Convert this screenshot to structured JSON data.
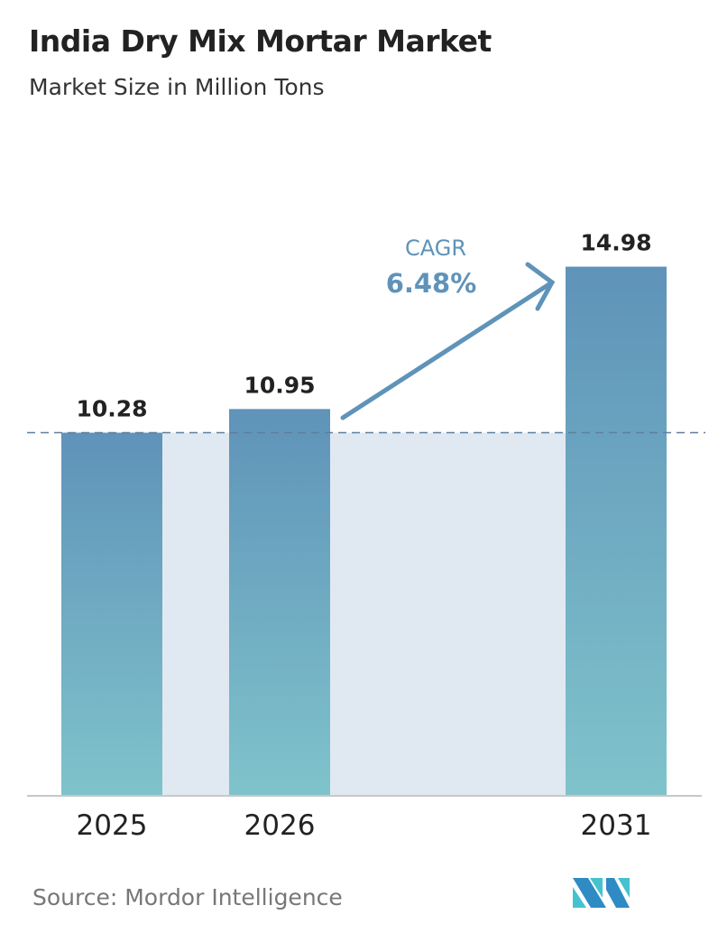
{
  "chart_data": {
    "type": "bar",
    "title": "India Dry Mix Mortar Market",
    "subtitle": "Market Size in Million Tons",
    "categories": [
      "2025",
      "2026",
      "2031"
    ],
    "values": [
      10.28,
      10.95,
      14.98
    ],
    "value_labels": [
      "10.28",
      "10.95",
      "14.98"
    ],
    "xlabel": "",
    "ylabel": "",
    "ylim": [
      0,
      15
    ],
    "grid": false,
    "reference_line_value": 10.28,
    "annotation": {
      "label": "CAGR",
      "value": "6.48%"
    },
    "source": "Source:  Mordor Intelligence"
  },
  "colors": {
    "bar_top": "#5f93b9",
    "bar_bottom": "#7fc3cb",
    "shade": "#e0e9f1",
    "arrow": "#5f93b9",
    "logo_dark": "#2f8bc4",
    "logo_light": "#46c2cf"
  }
}
